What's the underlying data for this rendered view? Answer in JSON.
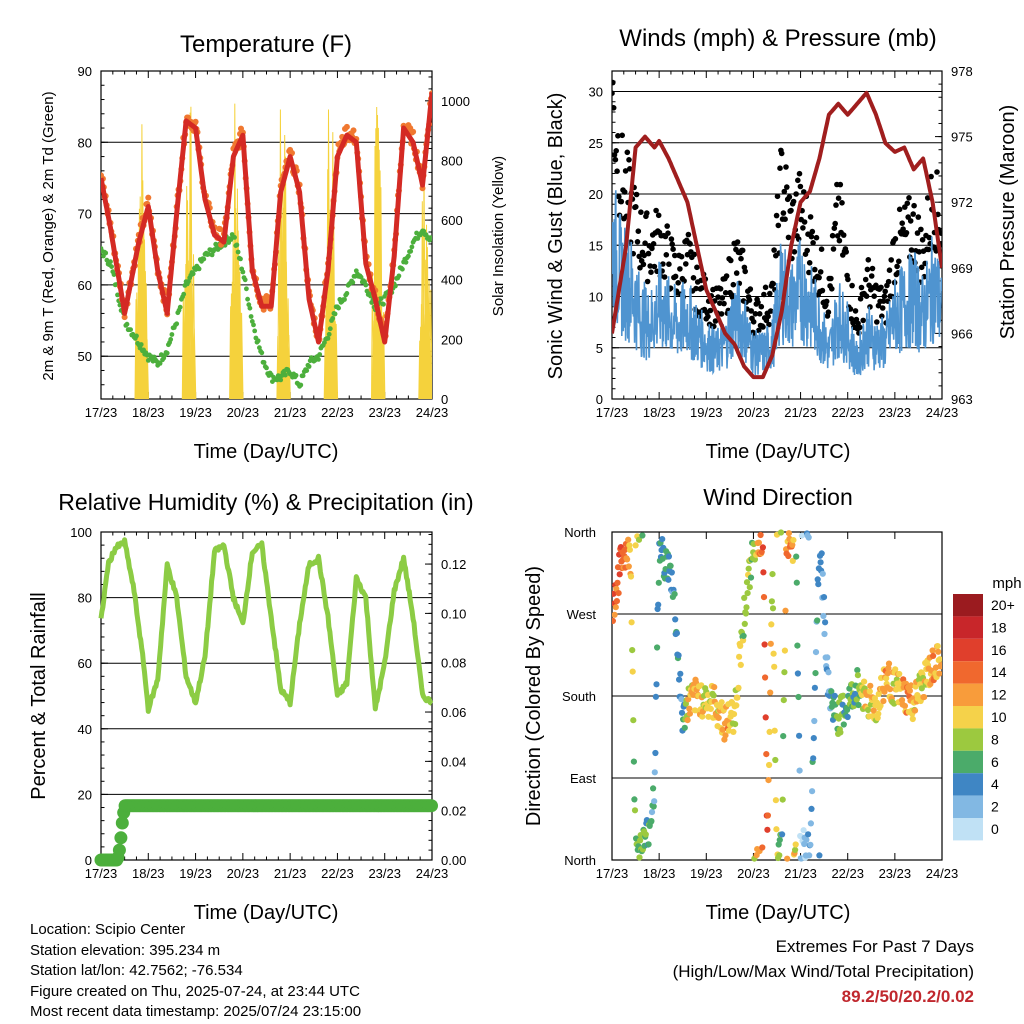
{
  "panels": {
    "temperature": {
      "title": "Temperature (F)",
      "xlabel": "Time (Day/UTC)",
      "ylabel_left": "2m & 9m T (Red, Orange) & 2m Td (Green)",
      "ylabel_right": "Solar Insolation (Yellow)"
    },
    "winds": {
      "title": "Winds (mph) & Pressure (mb)",
      "xlabel": "Time (Day/UTC)",
      "ylabel_left": "Sonic Wind & Gust (Blue, Black)",
      "ylabel_right": "Station Pressure (Maroon)"
    },
    "humidity": {
      "title": "Relative Humidity (%) & Precipitation (in)",
      "xlabel": "Time (Day/UTC)",
      "ylabel_left": "Percent & Total Rainfall"
    },
    "direction": {
      "title": "Wind Direction",
      "xlabel": "Time (Day/UTC)",
      "ylabel_left": "Direction (Colored By Speed)",
      "colorbar_title": "mph"
    }
  },
  "info": {
    "location": "Location: Scipio Center",
    "elevation": "Station elevation: 395.234 m",
    "latlon": "Station lat/lon: 42.7562; -76.534",
    "created": "Figure created on Thu, 2025-07-24, at 23:44 UTC",
    "recent": "Most recent data timestamp: 2025/07/24 23:15:00"
  },
  "extremes": {
    "line1": "Extremes For Past 7 Days",
    "line2": "(High/Low/Max Wind/Total Precipitation)",
    "values": "89.2/50/20.2/0.02"
  },
  "colors": {
    "temp_2m": "#d42a24",
    "temp_9m": "#f07830",
    "dewpoint": "#4caf3c",
    "solar": "#f5d23c",
    "wind": "#4f94d0",
    "gust": "#000000",
    "pressure": "#a01e1e",
    "rh": "#8ccc44",
    "precip": "#4caf3c"
  },
  "chart_data": [
    {
      "type": "line",
      "title": "Temperature (F)",
      "x_ticks": [
        "17/23",
        "18/23",
        "19/23",
        "20/23",
        "21/23",
        "22/23",
        "23/23",
        "24/23"
      ],
      "ylim": [
        44,
        90
      ],
      "y_ticks": [
        50,
        60,
        70,
        80,
        90
      ],
      "ylim_right": [
        0,
        1100
      ],
      "y_ticks_right": [
        0,
        200,
        400,
        600,
        800,
        1000
      ],
      "series": [
        {
          "name": "2m T",
          "axis": "left",
          "x": [
            0,
            0.2,
            0.5,
            0.8,
            1.0,
            1.2,
            1.4,
            1.6,
            1.8,
            2.0,
            2.2,
            2.4,
            2.6,
            2.8,
            3.0,
            3.2,
            3.4,
            3.6,
            3.8,
            4.0,
            4.2,
            4.4,
            4.6,
            4.8,
            5.0,
            5.2,
            5.4,
            5.6,
            5.8,
            6.0,
            6.2,
            6.4,
            6.6,
            6.8,
            7.0
          ],
          "y": [
            75,
            68,
            56,
            66,
            71,
            62,
            56,
            70,
            83,
            82,
            72,
            67,
            66,
            78,
            81,
            62,
            57,
            57,
            73,
            78,
            73,
            58,
            52,
            62,
            78,
            81,
            80,
            63,
            58,
            52,
            64,
            82,
            80,
            74,
            87
          ]
        },
        {
          "name": "9m T",
          "axis": "left",
          "x": [
            0.9,
            1.0,
            1.1,
            1.3,
            1.5,
            2.2,
            2.4,
            2.6,
            3.0,
            3.4,
            3.6,
            3.8,
            4.4,
            4.6,
            4.8,
            5.4,
            5.6,
            5.8,
            6.6,
            6.8
          ],
          "y": [
            62,
            64,
            62,
            61,
            63,
            70,
            68,
            67,
            78,
            62,
            59,
            62,
            60,
            58,
            62,
            79,
            62,
            60,
            68,
            72
          ]
        },
        {
          "name": "2m Td",
          "axis": "left",
          "x": [
            0,
            0.2,
            0.5,
            0.8,
            1.0,
            1.2,
            1.4,
            1.6,
            1.8,
            2.0,
            2.2,
            2.4,
            2.6,
            2.8,
            3.0,
            3.2,
            3.4,
            3.6,
            3.8,
            4.0,
            4.2,
            4.4,
            4.6,
            4.8,
            5.0,
            5.2,
            5.4,
            5.6,
            5.8,
            6.0,
            6.2,
            6.4,
            6.6,
            6.8,
            7.0
          ],
          "y": [
            65,
            63,
            55,
            52,
            50,
            49,
            51,
            55,
            60,
            62,
            64,
            65,
            66,
            67,
            62,
            55,
            50,
            47,
            47,
            48,
            46,
            49,
            50,
            53,
            57,
            59,
            62,
            60,
            57,
            58,
            60,
            63,
            66,
            68,
            66
          ]
        },
        {
          "name": "Solar Insolation",
          "axis": "right",
          "x": [
            0,
            0.3,
            0.5,
            0.7,
            0.8,
            1.0,
            1.15,
            1.3,
            1.5,
            1.6,
            1.8,
            1.9,
            2.0,
            2.15,
            2.3,
            2.5,
            2.6,
            2.8,
            2.9,
            3.0,
            3.15,
            3.3,
            3.5,
            3.6,
            3.8,
            3.9,
            4.0,
            4.15,
            4.3,
            4.5,
            4.6,
            4.8,
            4.9,
            5.0,
            5.15,
            5.3,
            5.5,
            5.6,
            5.8,
            5.9,
            6.0,
            6.15,
            6.3,
            6.5,
            6.6,
            6.8,
            6.9,
            7.0
          ],
          "y": [
            0,
            0,
            0,
            1050,
            0,
            0,
            0,
            0,
            0,
            1000,
            0,
            0,
            0,
            0,
            1050,
            0,
            0,
            0,
            0,
            1000,
            0,
            0,
            0,
            0,
            0,
            1050,
            0,
            0,
            0,
            0,
            0,
            0,
            1000,
            0,
            0,
            0,
            0,
            0,
            0,
            1000,
            0,
            0,
            0,
            0,
            0,
            0,
            800,
            0
          ]
        }
      ]
    },
    {
      "type": "scatter",
      "title": "Winds (mph) & Pressure (mb)",
      "x_ticks": [
        "17/23",
        "18/23",
        "19/23",
        "20/23",
        "21/23",
        "22/23",
        "23/23",
        "24/23"
      ],
      "ylim": [
        0,
        32
      ],
      "y_ticks": [
        0,
        5,
        10,
        15,
        20,
        25,
        30
      ],
      "ylim_right": [
        963,
        978
      ],
      "y_ticks_right": [
        963,
        966,
        969,
        972,
        975,
        978
      ],
      "series": [
        {
          "name": "Station Pressure",
          "axis": "right",
          "type": "line",
          "x": [
            0,
            0.15,
            0.3,
            0.5,
            0.7,
            0.9,
            1.0,
            1.2,
            1.4,
            1.6,
            1.8,
            2.0,
            2.2,
            2.4,
            2.6,
            2.8,
            3.0,
            3.2,
            3.4,
            3.6,
            3.8,
            4.0,
            4.2,
            4.4,
            4.6,
            4.8,
            5.0,
            5.2,
            5.4,
            5.6,
            5.8,
            6.0,
            6.2,
            6.4,
            6.6,
            6.8,
            7.0
          ],
          "y": [
            966,
            968,
            970,
            974.5,
            975,
            974.5,
            974.8,
            974,
            973,
            972,
            970,
            968,
            967,
            966,
            965.5,
            964.5,
            964,
            964,
            965,
            967,
            970,
            972,
            972.5,
            974,
            976,
            976.5,
            976,
            976.5,
            977,
            976,
            974.7,
            974.3,
            974.5,
            973.5,
            974,
            972,
            969
          ]
        },
        {
          "name": "Sonic Wind",
          "axis": "left",
          "x": [
            0,
            0.2,
            0.4,
            0.6,
            0.8,
            1.0,
            1.2,
            1.4,
            1.6,
            1.8,
            2.0,
            2.2,
            2.4,
            2.6,
            2.8,
            3.0,
            3.2,
            3.4,
            3.6,
            3.8,
            4.0,
            4.2,
            4.4,
            4.6,
            4.8,
            5.0,
            5.2,
            5.4,
            5.6,
            5.8,
            6.0,
            6.2,
            6.4,
            6.6,
            6.8,
            7.0
          ],
          "y": [
            17,
            13,
            12,
            9,
            8,
            10,
            9,
            8,
            9,
            7,
            6,
            5,
            6,
            9,
            8,
            5,
            5,
            6,
            12,
            10,
            12,
            10,
            8,
            5,
            9,
            7,
            4,
            7,
            6,
            6,
            9,
            10,
            11,
            9,
            12,
            10
          ]
        },
        {
          "name": "Gust",
          "axis": "left",
          "x": [
            0,
            0.2,
            0.4,
            0.6,
            0.8,
            1.0,
            1.2,
            1.4,
            1.6,
            1.8,
            2.0,
            2.2,
            2.4,
            2.6,
            2.8,
            3.0,
            3.2,
            3.4,
            3.6,
            3.8,
            4.0,
            4.2,
            4.4,
            4.6,
            4.8,
            5.0,
            5.2,
            5.4,
            5.6,
            5.8,
            6.0,
            6.2,
            6.4,
            6.6,
            6.8,
            7.0
          ],
          "y": [
            30,
            22,
            19,
            16,
            15,
            16,
            14,
            12,
            14,
            11,
            10,
            9,
            10,
            14,
            12,
            8,
            9,
            10,
            22,
            17,
            19,
            16,
            13,
            10,
            19,
            12,
            7,
            12,
            10,
            9,
            15,
            16,
            17,
            14,
            20,
            17
          ]
        }
      ]
    },
    {
      "type": "line",
      "title": "Relative Humidity (%) & Precipitation (in)",
      "x_ticks": [
        "17/23",
        "18/23",
        "19/23",
        "20/23",
        "21/23",
        "22/23",
        "23/23",
        "24/23"
      ],
      "ylim": [
        0,
        100
      ],
      "y_ticks": [
        0,
        20,
        40,
        60,
        80,
        100
      ],
      "ylim_right": [
        0,
        0.133
      ],
      "y_ticks_right": [
        0.0,
        0.02,
        0.04,
        0.06,
        0.08,
        0.1,
        0.12
      ],
      "series": [
        {
          "name": "Relative Humidity",
          "axis": "left",
          "x": [
            0,
            0.15,
            0.3,
            0.5,
            0.7,
            0.9,
            1.0,
            1.2,
            1.4,
            1.6,
            1.8,
            2.0,
            2.2,
            2.4,
            2.6,
            2.8,
            3.0,
            3.2,
            3.4,
            3.6,
            3.8,
            4.0,
            4.2,
            4.4,
            4.6,
            4.8,
            5.0,
            5.2,
            5.4,
            5.6,
            5.8,
            6.0,
            6.2,
            6.4,
            6.6,
            6.8,
            7.0
          ],
          "y": [
            73,
            90,
            95,
            97,
            82,
            60,
            46,
            55,
            90,
            80,
            56,
            48,
            62,
            94,
            96,
            80,
            72,
            94,
            96,
            74,
            52,
            48,
            72,
            90,
            92,
            74,
            50,
            54,
            86,
            80,
            46,
            60,
            82,
            92,
            74,
            50,
            48
          ]
        },
        {
          "name": "Total Rainfall",
          "axis": "right",
          "x": [
            0,
            0.35,
            0.4,
            0.45,
            0.5,
            7.0
          ],
          "y": [
            0,
            0,
            0.005,
            0.015,
            0.022,
            0.022
          ]
        }
      ]
    },
    {
      "type": "scatter",
      "title": "Wind Direction",
      "x_ticks": [
        "17/23",
        "18/23",
        "19/23",
        "20/23",
        "21/23",
        "22/23",
        "23/23",
        "24/23"
      ],
      "y_tick_labels": [
        "North",
        "East",
        "South",
        "West",
        "North"
      ],
      "ylim": [
        0,
        360
      ],
      "colorbar_labels": [
        "20+",
        "18",
        "16",
        "14",
        "12",
        "10",
        "8",
        "6",
        "4",
        "2",
        "0"
      ],
      "colorbar_colors": [
        "#9b1b1f",
        "#c8262a",
        "#e03f2c",
        "#f0682e",
        "#f89c3b",
        "#f5d24a",
        "#9cc93f",
        "#4bab6a",
        "#3f86c4",
        "#82b8e3",
        "#c0e1f5"
      ],
      "series": [
        {
          "name": "Direction",
          "x": [
            0,
            0.1,
            0.2,
            0.3,
            0.4,
            0.5,
            0.7,
            0.8,
            0.9,
            1.0,
            1.2,
            1.3,
            1.5,
            1.6,
            1.8,
            2.0,
            2.2,
            2.4,
            2.6,
            2.8,
            3.0,
            3.1,
            3.2,
            3.3,
            3.4,
            3.5,
            3.6,
            3.7,
            3.8,
            3.9,
            4.0,
            4.2,
            4.4,
            4.6,
            4.8,
            5.0,
            5.2,
            5.4,
            5.6,
            5.8,
            6.0,
            6.2,
            6.4,
            6.6,
            6.8,
            7.0
          ],
          "y": [
            270,
            300,
            330,
            340,
            330,
            5,
            20,
            40,
            80,
            340,
            320,
            300,
            150,
            170,
            180,
            175,
            170,
            150,
            160,
            270,
            340,
            355,
            355,
            5,
            320,
            10,
            20,
            350,
            340,
            360,
            15,
            10,
            360,
            180,
            155,
            170,
            190,
            180,
            165,
            200,
            190,
            180,
            170,
            195,
            210,
            220
          ],
          "speed": [
            16,
            14,
            15,
            13,
            10,
            8,
            6,
            5,
            4,
            6,
            5,
            4,
            4,
            10,
            11,
            9,
            10,
            12,
            10,
            8,
            8,
            12,
            15,
            14,
            8,
            10,
            6,
            12,
            13,
            8,
            1,
            3,
            4,
            2,
            8,
            5,
            6,
            10,
            10,
            12,
            10,
            12,
            11,
            10,
            12,
            11
          ]
        }
      ]
    }
  ]
}
